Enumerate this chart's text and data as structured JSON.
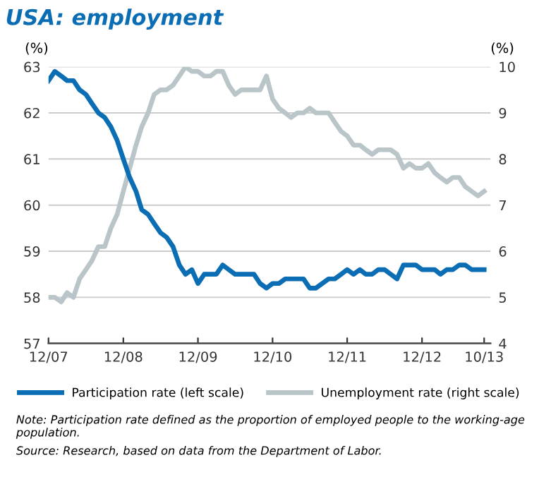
{
  "chart_data": {
    "type": "line",
    "title": "USA: employment",
    "ylabel": "(%)",
    "y2label": "(%)",
    "x": [
      "2007-12",
      "2008-01",
      "2008-02",
      "2008-03",
      "2008-04",
      "2008-05",
      "2008-06",
      "2008-07",
      "2008-08",
      "2008-09",
      "2008-10",
      "2008-11",
      "2008-12",
      "2009-01",
      "2009-02",
      "2009-03",
      "2009-04",
      "2009-05",
      "2009-06",
      "2009-07",
      "2009-08",
      "2009-09",
      "2009-10",
      "2009-11",
      "2009-12",
      "2010-01",
      "2010-02",
      "2010-03",
      "2010-04",
      "2010-05",
      "2010-06",
      "2010-07",
      "2010-08",
      "2010-09",
      "2010-10",
      "2010-11",
      "2010-12",
      "2011-01",
      "2011-02",
      "2011-03",
      "2011-04",
      "2011-05",
      "2011-06",
      "2011-07",
      "2011-08",
      "2011-09",
      "2011-10",
      "2011-11",
      "2011-12",
      "2012-01",
      "2012-02",
      "2012-03",
      "2012-04",
      "2012-05",
      "2012-06",
      "2012-07",
      "2012-08",
      "2012-09",
      "2012-10",
      "2012-11",
      "2012-12",
      "2013-01",
      "2013-02",
      "2013-03",
      "2013-04",
      "2013-05",
      "2013-06",
      "2013-07",
      "2013-08",
      "2013-09",
      "2013-10"
    ],
    "series": [
      {
        "name": "Participation rate (left scale)",
        "color": "#0b6db3",
        "values": [
          62.7,
          62.9,
          62.8,
          62.7,
          62.7,
          62.5,
          62.4,
          62.2,
          62.0,
          61.9,
          61.7,
          61.4,
          61.0,
          60.6,
          60.3,
          59.9,
          59.8,
          59.6,
          59.4,
          59.3,
          59.1,
          58.7,
          58.5,
          58.6,
          58.3,
          58.5,
          58.5,
          58.5,
          58.7,
          58.6,
          58.5,
          58.5,
          58.5,
          58.5,
          58.3,
          58.2,
          58.3,
          58.3,
          58.4,
          58.4,
          58.4,
          58.4,
          58.2,
          58.2,
          58.3,
          58.4,
          58.4,
          58.5,
          58.6,
          58.5,
          58.6,
          58.5,
          58.5,
          58.6,
          58.6,
          58.5,
          58.4,
          58.7,
          58.7,
          58.7,
          58.6,
          58.6,
          58.6,
          58.5,
          58.6,
          58.6,
          58.7,
          58.7,
          58.6,
          58.6,
          58.6
        ]
      },
      {
        "name": "Unemployment rate (right scale)",
        "color": "#b9c5c9",
        "axis": "y2",
        "values": [
          5.0,
          5.0,
          4.9,
          5.1,
          5.0,
          5.4,
          5.6,
          5.8,
          6.1,
          6.1,
          6.5,
          6.8,
          7.3,
          7.8,
          8.3,
          8.7,
          9.0,
          9.4,
          9.5,
          9.5,
          9.6,
          9.8,
          10.0,
          9.9,
          9.9,
          9.8,
          9.8,
          9.9,
          9.9,
          9.6,
          9.4,
          9.5,
          9.5,
          9.5,
          9.5,
          9.8,
          9.3,
          9.1,
          9.0,
          8.9,
          9.0,
          9.0,
          9.1,
          9.0,
          9.0,
          9.0,
          8.8,
          8.6,
          8.5,
          8.3,
          8.3,
          8.2,
          8.1,
          8.2,
          8.2,
          8.2,
          8.1,
          7.8,
          7.9,
          7.8,
          7.8,
          7.9,
          7.7,
          7.6,
          7.5,
          7.6,
          7.6,
          7.4,
          7.3,
          7.2,
          7.3
        ]
      }
    ],
    "xlim": [
      "2007-12",
      "2013-11"
    ],
    "xticks": [
      {
        "value": "2007-12",
        "label": "12/07"
      },
      {
        "value": "2008-12",
        "label": "12/08"
      },
      {
        "value": "2009-12",
        "label": "12/09"
      },
      {
        "value": "2010-12",
        "label": "12/10"
      },
      {
        "value": "2011-12",
        "label": "12/11"
      },
      {
        "value": "2012-12",
        "label": "12/12"
      },
      {
        "value": "2013-10",
        "label": "10/13"
      }
    ],
    "ylim": [
      57,
      63
    ],
    "yticks": [
      57,
      58,
      59,
      60,
      61,
      62,
      63
    ],
    "y2lim": [
      4,
      10
    ],
    "y2ticks": [
      4,
      5,
      6,
      7,
      8,
      9,
      10
    ],
    "grid": "y",
    "legend": "bottom",
    "line_style": "solid",
    "marker": "none",
    "annotations": [
      "Note: Participation rate defined as the proportion of employed people to the working-age population.",
      "Source: Research, based on data from the Department of Labor."
    ]
  }
}
